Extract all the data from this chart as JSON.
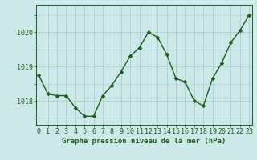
{
  "x": [
    0,
    1,
    2,
    3,
    4,
    5,
    6,
    7,
    8,
    9,
    10,
    11,
    12,
    13,
    14,
    15,
    16,
    17,
    18,
    19,
    20,
    21,
    22,
    23
  ],
  "y": [
    1018.75,
    1018.2,
    1018.15,
    1018.15,
    1017.8,
    1017.55,
    1017.55,
    1018.15,
    1018.45,
    1018.85,
    1019.3,
    1019.55,
    1020.0,
    1019.85,
    1019.35,
    1018.65,
    1018.55,
    1018.0,
    1017.85,
    1018.65,
    1019.1,
    1019.7,
    1020.05,
    1020.5
  ],
  "line_color": "#1a5e1a",
  "marker": "D",
  "marker_size": 2.5,
  "bg_color": "#cce8e8",
  "grid_color": "#aad0d0",
  "ylabel_ticks": [
    1018,
    1019,
    1020
  ],
  "xlabel_ticks": [
    0,
    1,
    2,
    3,
    4,
    5,
    6,
    7,
    8,
    9,
    10,
    11,
    12,
    13,
    14,
    15,
    16,
    17,
    18,
    19,
    20,
    21,
    22,
    23
  ],
  "xlabel_labels": [
    "0",
    "1",
    "2",
    "3",
    "4",
    "5",
    "6",
    "7",
    "8",
    "9",
    "10",
    "11",
    "12",
    "13",
    "14",
    "15",
    "16",
    "17",
    "18",
    "19",
    "20",
    "21",
    "22",
    "23"
  ],
  "xlabel": "Graphe pression niveau de la mer (hPa)",
  "ylim": [
    1017.3,
    1020.8
  ],
  "xlim": [
    -0.3,
    23.3
  ],
  "tick_color": "#1a5e1a",
  "label_fontsize": 6.0,
  "xlabel_fontsize": 6.5,
  "line_width": 1.0
}
